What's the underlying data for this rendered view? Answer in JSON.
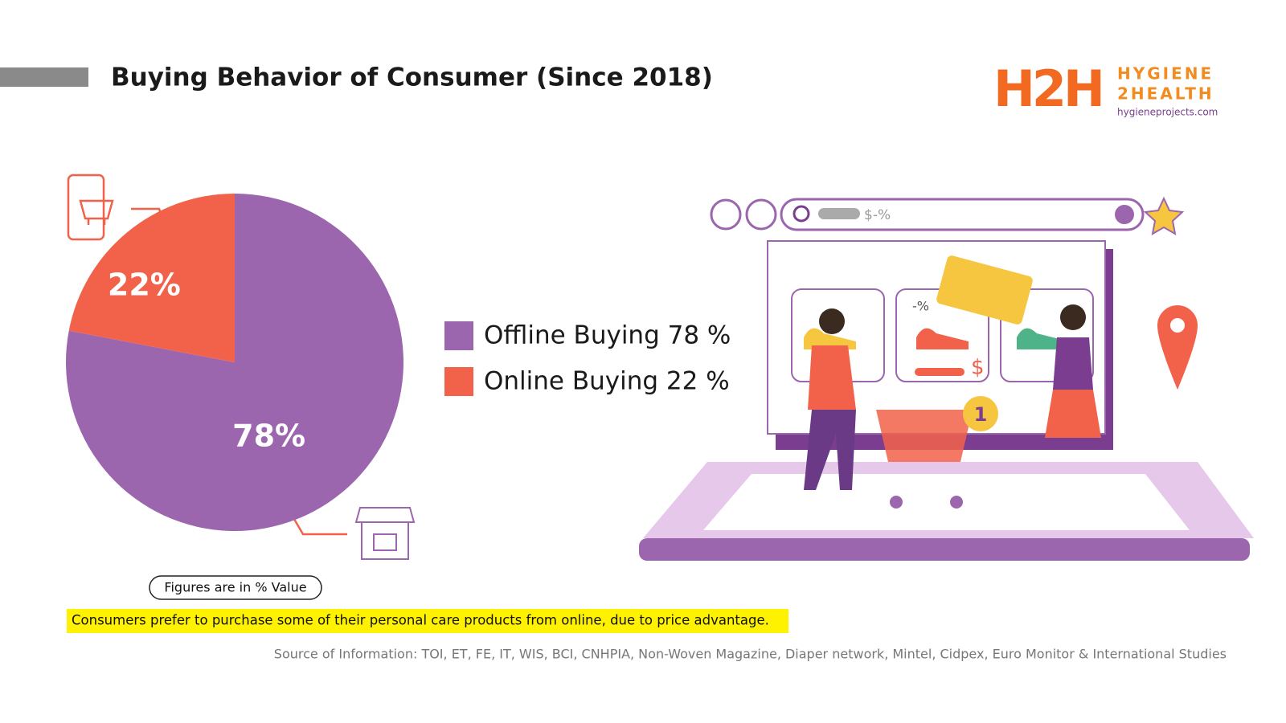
{
  "header": {
    "title": "Buying Behavior of Consumer (Since 2018)",
    "logo": {
      "mark": "H2H",
      "line1": "HYGIENE",
      "line2": "2HEALTH",
      "url": "hygieneprojects.com"
    }
  },
  "chart_data": {
    "type": "pie",
    "categories": [
      "Offline Buying 78 %",
      "Online Buying 22 %"
    ],
    "values": [
      78,
      22
    ],
    "value_labels": [
      "78%",
      "22%"
    ],
    "colors": [
      "#9c66ae",
      "#f2614a"
    ]
  },
  "illustration": {
    "search_text": "$-%",
    "discount": "-%",
    "price": "$",
    "badge": "1"
  },
  "footer": {
    "note": "Figures are in % Value",
    "highlight": "Consumers prefer to purchase some of their personal care products from online, due to price advantage.",
    "source": "Source of Information: TOI, ET, FE, IT, WIS, BCI, CNHPIA, Non-Woven Magazine, Diaper network, Mintel, Cidpex, Euro Monitor & International Studies"
  }
}
